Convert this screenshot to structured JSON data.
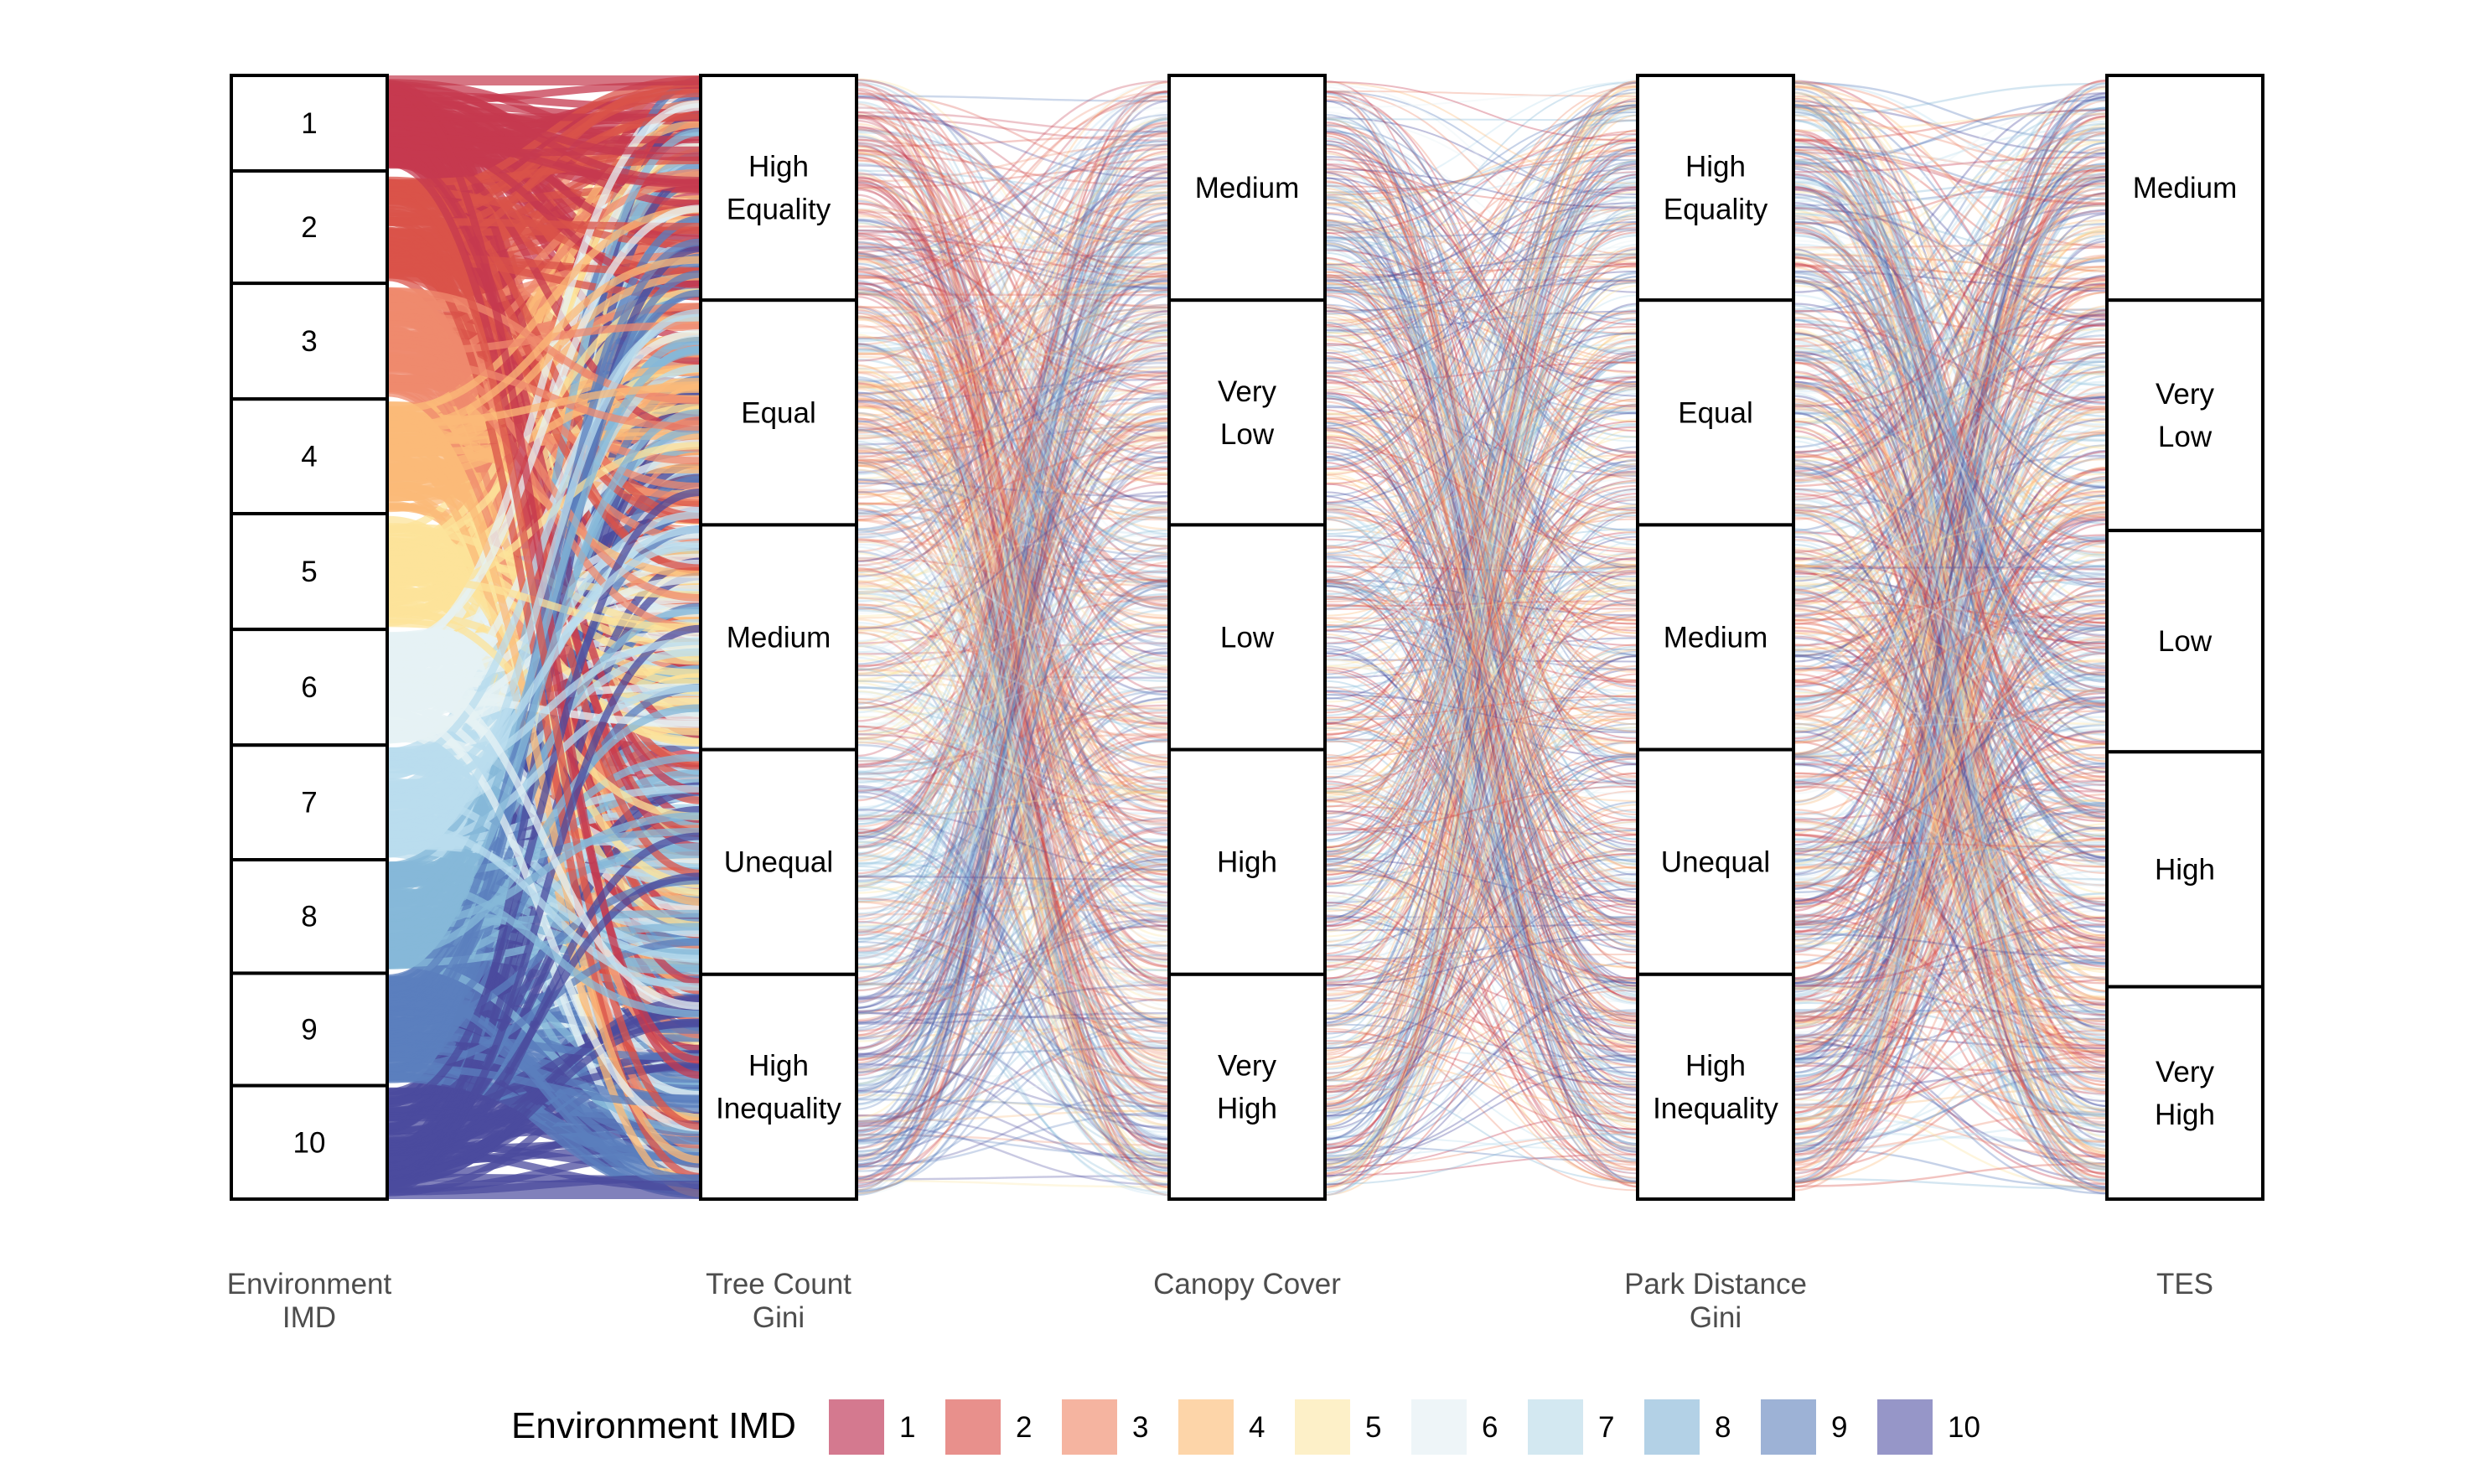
{
  "chart_data": {
    "type": "alluvial",
    "axes": [
      {
        "title": [
          "Environment",
          "IMD"
        ],
        "strata": [
          [
            "1"
          ],
          [
            "2"
          ],
          [
            "3"
          ],
          [
            "4"
          ],
          [
            "5"
          ],
          [
            "6"
          ],
          [
            "7"
          ],
          [
            "8"
          ],
          [
            "9"
          ],
          [
            "10"
          ]
        ]
      },
      {
        "title": [
          "Tree Count",
          "Gini"
        ],
        "strata": [
          [
            "High",
            "Equality"
          ],
          [
            "Equal"
          ],
          [
            "Medium"
          ],
          [
            "Unequal"
          ],
          [
            "High",
            "Inequality"
          ]
        ]
      },
      {
        "title": [
          "Canopy Cover"
        ],
        "strata": [
          [
            "Medium"
          ],
          [
            "Very",
            "Low"
          ],
          [
            "Low"
          ],
          [
            "High"
          ],
          [
            "Very",
            "High"
          ]
        ]
      },
      {
        "title": [
          "Park Distance",
          "Gini"
        ],
        "strata": [
          [
            "High",
            "Equality"
          ],
          [
            "Equal"
          ],
          [
            "Medium"
          ],
          [
            "Unequal"
          ],
          [
            "High",
            "Inequality"
          ]
        ]
      },
      {
        "title": [
          "TES"
        ],
        "strata": [
          [
            "Medium"
          ],
          [
            "Very",
            "Low"
          ],
          [
            "Low"
          ],
          [
            "High"
          ],
          [
            "Very",
            "High"
          ]
        ]
      }
    ],
    "stratum_shares": [
      [
        0.085,
        0.1,
        0.103,
        0.102,
        0.103,
        0.103,
        0.102,
        0.101,
        0.1,
        0.101
      ],
      [
        0.2,
        0.2,
        0.2,
        0.2,
        0.2
      ],
      [
        0.2,
        0.2,
        0.2,
        0.2,
        0.2
      ],
      [
        0.2,
        0.2,
        0.2,
        0.2,
        0.2
      ],
      [
        0.2,
        0.205,
        0.197,
        0.209,
        0.189
      ]
    ],
    "legend": {
      "title": "Environment IMD",
      "position": "bottom",
      "items": [
        {
          "label": "1",
          "color": "#d4798f"
        },
        {
          "label": "2",
          "color": "#e8908c"
        },
        {
          "label": "3",
          "color": "#f5b4a0"
        },
        {
          "label": "4",
          "color": "#fdd5a9"
        },
        {
          "label": "5",
          "color": "#fdf0c8"
        },
        {
          "label": "6",
          "color": "#eef5f8"
        },
        {
          "label": "7",
          "color": "#d3e8f1"
        },
        {
          "label": "8",
          "color": "#b3d1e6"
        },
        {
          "label": "9",
          "color": "#9db2d6"
        },
        {
          "label": "10",
          "color": "#9696c8"
        }
      ]
    },
    "flow_colors": {
      "1": "#c53a4f",
      "2": "#d9534a",
      "3": "#ef8a6d",
      "4": "#fbb978",
      "5": "#fce39a",
      "6": "#e6f1f4",
      "7": "#b9dced",
      "8": "#85b8d8",
      "9": "#5b7fbd",
      "10": "#4b4b9e"
    }
  }
}
